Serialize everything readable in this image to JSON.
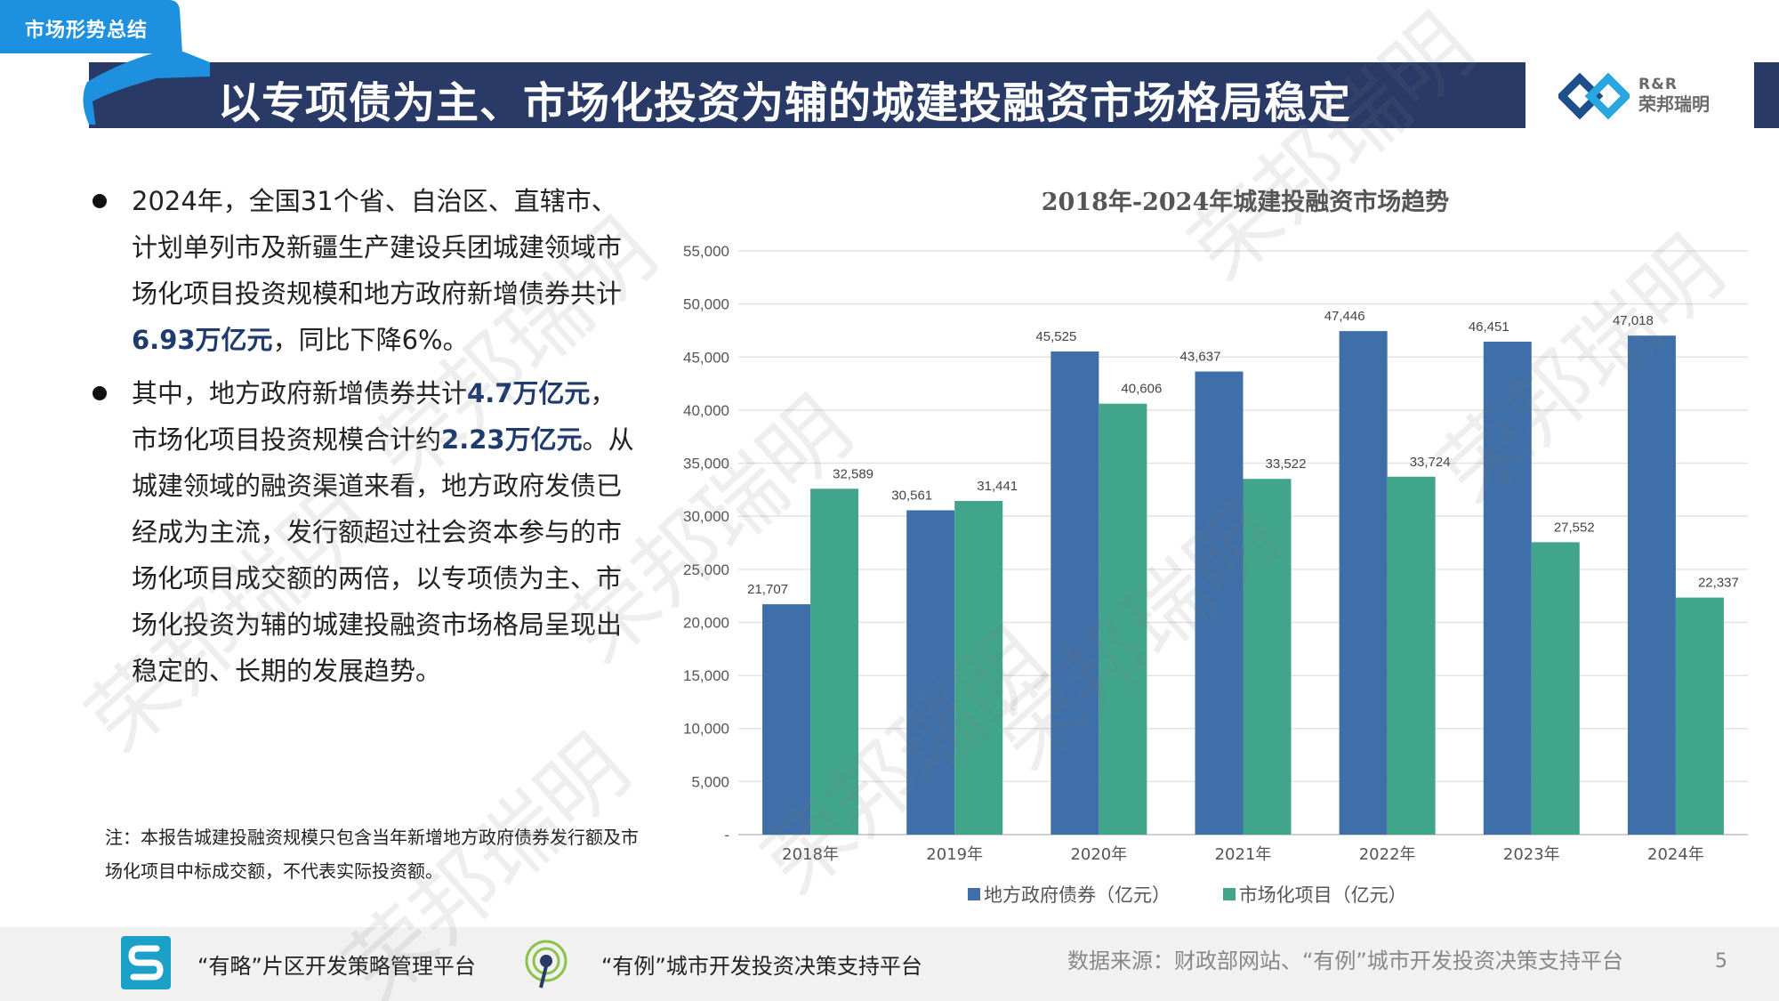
{
  "section_tag": "市场形势总结",
  "title": "以专项债为主、市场化投资为辅的城建投融资市场格局稳定",
  "logo": {
    "line1": "R&R",
    "line2": "荣邦瑞明"
  },
  "bullets": [
    {
      "pre": "2024年，全国31个省、自治区、直辖市、计划单列市及新疆生产建设兵团城建领域市场化项目投资规模和地方政府新增债券共计",
      "hl1": "6.93万亿元",
      "mid": "，同比下降6%。"
    },
    {
      "pre": "其中，地方政府新增债券共计",
      "hl1": "4.7万亿元",
      "mid": "，市场化项目投资规模合计约",
      "hl2": "2.23万亿元",
      "post": "。从城建领域的融资渠道来看，地方政府发债已经成为主流，发行额超过社会资本参与的市场化项目成交额的两倍，以专项债为主、市场化投资为辅的城建投融资市场格局呈现出稳定的、长期的发展趋势。"
    }
  ],
  "note": "注：本报告城建投融资规模只包含当年新增地方政府债券发行额及市场化项目中标成交额，不代表实际投资额。",
  "chart_data": {
    "type": "bar",
    "title": "2018年-2024年城建投融资市场趋势",
    "categories": [
      "2018年",
      "2019年",
      "2020年",
      "2021年",
      "2022年",
      "2023年",
      "2024年"
    ],
    "series": [
      {
        "name": "地方政府债券（亿元）",
        "color": "#3f6fa8",
        "values": [
          21707,
          30561,
          45525,
          43637,
          47446,
          46451,
          47018
        ]
      },
      {
        "name": "市场化项目（亿元）",
        "color": "#41a58c",
        "values": [
          32589,
          31441,
          40606,
          33522,
          33724,
          27552,
          22337
        ]
      }
    ],
    "ylim": [
      0,
      55000
    ],
    "yticks": [
      0,
      5000,
      10000,
      15000,
      20000,
      25000,
      30000,
      35000,
      40000,
      45000,
      50000,
      55000
    ],
    "ytick_labels": [
      "-",
      "5,000",
      "10,000",
      "15,000",
      "20,000",
      "25,000",
      "30,000",
      "35,000",
      "40,000",
      "45,000",
      "50,000",
      "55,000"
    ],
    "grid": true,
    "legend_position": "bottom"
  },
  "footer": {
    "platform1": "“有略”片区开发策略管理平台",
    "platform2": "“有例”城市开发投资决策支持平台",
    "source": "数据来源：财政部网站、“有例”城市开发投资决策支持平台",
    "page_number": "5"
  },
  "watermark_text": "荣邦瑞明",
  "colors": {
    "navy": "#2a3a67",
    "accent_blue": "#1e90e0",
    "bar_blue": "#3f6fa8",
    "bar_green": "#41a58c"
  }
}
